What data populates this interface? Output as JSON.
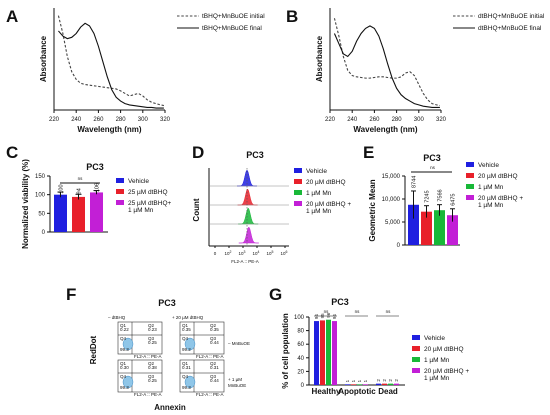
{
  "panel_letters": [
    "A",
    "B",
    "C",
    "D",
    "E",
    "F",
    "G"
  ],
  "colors": {
    "vehicle": "#1f1fe0",
    "dtbhq": "#e8202a",
    "mn": "#18b838",
    "combo": "#c21fd6",
    "axis": "#111111",
    "dashed": "#444444"
  },
  "chart_data": [
    {
      "panel": "A",
      "type": "line",
      "xlabel": "Wavelength (nm)",
      "ylabel": "Absorbance",
      "xlim": [
        220,
        320
      ],
      "xticks": [
        220,
        240,
        260,
        280,
        300,
        320
      ],
      "grid": false,
      "legend": "top-right",
      "series": [
        {
          "name": "tBHQ+MnBuOE initial",
          "style": "dashed",
          "x": [
            224,
            228,
            232,
            236,
            240,
            244,
            248,
            252,
            256,
            260,
            264,
            268,
            272,
            276,
            280,
            284,
            288,
            292,
            296,
            300,
            304,
            308,
            312,
            316,
            319
          ],
          "y": [
            0.74,
            0.6,
            0.42,
            0.3,
            0.24,
            0.21,
            0.2,
            0.195,
            0.19,
            0.185,
            0.18,
            0.175,
            0.17,
            0.165,
            0.15,
            0.13,
            0.11,
            0.12,
            0.13,
            0.11,
            0.08,
            0.06,
            0.05,
            0.04,
            0.035
          ]
        },
        {
          "name": "tBHQ+MnBuOE final",
          "style": "solid",
          "x": [
            224,
            228,
            232,
            236,
            240,
            244,
            248,
            252,
            256,
            260,
            264,
            268,
            272,
            276,
            280,
            284,
            288,
            292,
            296,
            300,
            304,
            308,
            312,
            316,
            319
          ],
          "y": [
            0.62,
            0.58,
            0.56,
            0.57,
            0.6,
            0.65,
            0.68,
            0.66,
            0.6,
            0.5,
            0.38,
            0.26,
            0.16,
            0.1,
            0.07,
            0.05,
            0.04,
            0.035,
            0.03,
            0.025,
            0.02,
            0.02,
            0.015,
            0.015,
            0.015
          ]
        }
      ]
    },
    {
      "panel": "B",
      "type": "line",
      "xlabel": "Wavelength (nm)",
      "ylabel": "Absorbance",
      "xlim": [
        220,
        320
      ],
      "xticks": [
        220,
        240,
        260,
        280,
        300,
        320
      ],
      "grid": false,
      "legend": "top-right",
      "series": [
        {
          "name": "dtBHQ+MnBuOE initial",
          "style": "dashed",
          "x": [
            224,
            228,
            232,
            236,
            240,
            244,
            248,
            252,
            256,
            260,
            264,
            268,
            272,
            276,
            280,
            284,
            288,
            292,
            296,
            300,
            304,
            308,
            312,
            316,
            319
          ],
          "y": [
            0.72,
            0.58,
            0.42,
            0.31,
            0.27,
            0.26,
            0.255,
            0.25,
            0.25,
            0.255,
            0.26,
            0.26,
            0.255,
            0.25,
            0.25,
            0.26,
            0.29,
            0.3,
            0.27,
            0.2,
            0.13,
            0.08,
            0.05,
            0.04,
            0.035
          ]
        },
        {
          "name": "dtBHQ+MnBuOE final",
          "style": "solid",
          "x": [
            224,
            228,
            232,
            236,
            240,
            244,
            248,
            252,
            256,
            260,
            264,
            268,
            272,
            276,
            280,
            284,
            288,
            292,
            296,
            300,
            304,
            308,
            312,
            316,
            319
          ],
          "y": [
            0.6,
            0.52,
            0.44,
            0.42,
            0.46,
            0.54,
            0.6,
            0.64,
            0.66,
            0.64,
            0.58,
            0.48,
            0.36,
            0.25,
            0.17,
            0.12,
            0.09,
            0.07,
            0.05,
            0.04,
            0.03,
            0.025,
            0.02,
            0.02,
            0.02
          ]
        }
      ]
    },
    {
      "panel": "C",
      "type": "bar",
      "title": "PC3",
      "ylabel": "Normalized viability (%)",
      "ylim": [
        0,
        150
      ],
      "yticks": [
        0,
        50,
        100,
        150
      ],
      "categories": [
        "Vehicle",
        "25 µM dtBHQ",
        "25 µM dtBHQ+ 1 µM Mn"
      ],
      "values": [
        100,
        94,
        106
      ],
      "errors": [
        7,
        7,
        5
      ],
      "bar_labels": [
        "100",
        "94",
        "106"
      ],
      "significance": "ns",
      "legend": "right"
    },
    {
      "panel": "D",
      "type": "histogram",
      "title": "PC3",
      "xlabel": "FL2-A :: PE-A",
      "ylabel": "Count",
      "xticks": [
        "0",
        "10^2",
        "10^3",
        "10^4",
        "10^5",
        "10^6"
      ],
      "series": [
        {
          "name": "Vehicle",
          "color": "vehicle"
        },
        {
          "name": "20 µM dtBHQ",
          "color": "dtbhq"
        },
        {
          "name": "1 µM Mn",
          "color": "mn"
        },
        {
          "name": "20 µM dtBHQ + 1 µM Mn",
          "color": "combo"
        }
      ],
      "legend": "right"
    },
    {
      "panel": "E",
      "type": "bar",
      "title": "PC3",
      "ylabel": "Geometric Mean",
      "ylim": [
        0,
        15000
      ],
      "yticks": [
        "0",
        "5,000",
        "10,000",
        "15,000"
      ],
      "categories": [
        "Vehicle",
        "20 µM dtBHQ",
        "1 µM Mn",
        "20 µM dtBHQ + 1 µM Mn"
      ],
      "values": [
        8744,
        7245,
        7566,
        6475
      ],
      "errors": [
        3000,
        1300,
        1200,
        1400
      ],
      "bar_labels": [
        "8744",
        "7245",
        "7566",
        "6475"
      ],
      "significance": "ns",
      "legend": "right"
    },
    {
      "panel": "F",
      "type": "scatter",
      "title": "PC3",
      "xlabel": "Annexin",
      "ylabel": "RedDot",
      "column_labels": [
        "– dtBHQ",
        "+ 20 µM dtBHQ"
      ],
      "row_labels": [
        "– MnBuOE",
        "+ 1 µM MnBuOE"
      ],
      "quadrants": [
        {
          "q1": "Q1",
          "q1v": "0.22",
          "q2": "Q2",
          "q2v": "0.23",
          "q3": "Q3",
          "q3v": "0.25",
          "q4": "Q4",
          "q4v": "99.3",
          "extra": "0.21"
        },
        {
          "q1": "Q1",
          "q1v": "0.35",
          "q2": "Q2",
          "q2v": "0.35",
          "q3": "Q3",
          "q3v": "0.44",
          "q4": "Q4",
          "q4v": "99.2",
          "extra": "0.20"
        },
        {
          "q1": "Q1",
          "q1v": "0.30",
          "q2": "Q2",
          "q2v": "0.38",
          "q3": "Q3",
          "q3v": "0.25",
          "q4": "Q4",
          "q4v": "99.3",
          "extra": "0.19"
        },
        {
          "q1": "Q1",
          "q1v": "0.31",
          "q2": "Q2",
          "q2v": "0.31",
          "q3": "Q3",
          "q3v": "0.44",
          "q4": "Q4",
          "q4v": "99.3",
          "extra": "0.18"
        }
      ],
      "axis_tick": "FL2-A :: PE-A"
    },
    {
      "panel": "G",
      "type": "bar",
      "title": "PC3",
      "ylabel": "% of cell population",
      "ylim": [
        0,
        100
      ],
      "yticks": [
        0,
        20,
        40,
        60,
        80,
        100
      ],
      "categories": [
        "Healthy",
        "Apoptotic",
        "Dead"
      ],
      "series": [
        {
          "name": "Vehicle",
          "values": [
            94,
            1,
            2
          ],
          "labels": [
            "94",
            "1",
            "2"
          ]
        },
        {
          "name": "20 µM dtBHQ",
          "values": [
            95,
            1,
            2
          ],
          "labels": [
            "95",
            "1",
            "2"
          ]
        },
        {
          "name": "1 µM Mn",
          "values": [
            96,
            1,
            2
          ],
          "labels": [
            "96",
            "1",
            "2"
          ]
        },
        {
          "name": "20 µM dtBHQ + 1 µM Mn",
          "values": [
            94,
            1,
            2
          ],
          "labels": [
            "94",
            "1",
            "2"
          ]
        }
      ],
      "significance": [
        "ns",
        "ns",
        "ns"
      ],
      "legend": "right"
    }
  ]
}
